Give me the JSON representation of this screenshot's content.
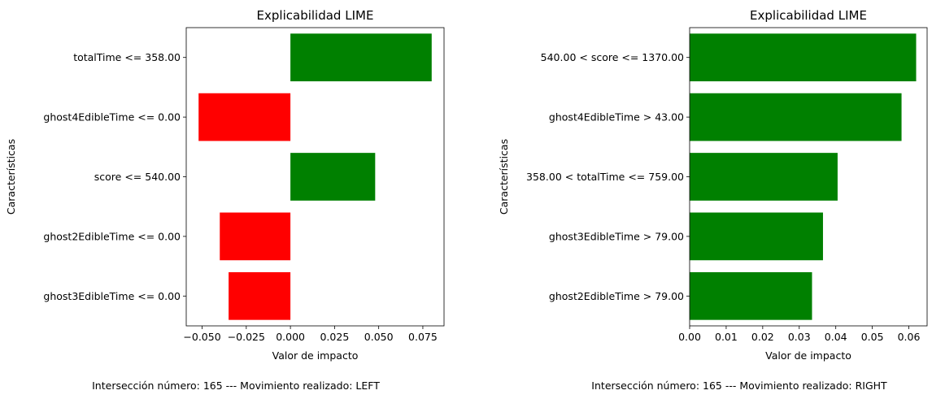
{
  "chart_data": [
    {
      "type": "bar",
      "orientation": "horizontal",
      "title": "Explicabilidad LIME",
      "xlabel": "Valor de impacto",
      "ylabel": "Características",
      "categories": [
        "totalTime <= 358.00",
        "ghost4EdibleTime <= 0.00",
        "score <= 540.00",
        "ghost2EdibleTime <= 0.00",
        "ghost3EdibleTime <= 0.00"
      ],
      "values": [
        0.08,
        -0.052,
        0.048,
        -0.04,
        -0.035
      ],
      "colors": [
        "#008000",
        "#ff0000",
        "#008000",
        "#ff0000",
        "#ff0000"
      ],
      "xlim": [
        -0.059,
        0.087
      ],
      "xticks": [
        -0.05,
        -0.025,
        0.0,
        0.025,
        0.05,
        0.075
      ],
      "xtick_labels": [
        "−0.050",
        "−0.025",
        "0.000",
        "0.025",
        "0.050",
        "0.075"
      ],
      "footer": "Intersección número: 165 --- Movimiento realizado: LEFT"
    },
    {
      "type": "bar",
      "orientation": "horizontal",
      "title": "Explicabilidad LIME",
      "xlabel": "Valor de impacto",
      "ylabel": "Características",
      "categories": [
        "540.00 < score <= 1370.00",
        "ghost4EdibleTime > 43.00",
        "358.00 < totalTime <= 759.00",
        "ghost3EdibleTime > 79.00",
        "ghost2EdibleTime > 79.00"
      ],
      "values": [
        0.062,
        0.058,
        0.0405,
        0.0365,
        0.0335
      ],
      "colors": [
        "#008000",
        "#008000",
        "#008000",
        "#008000",
        "#008000"
      ],
      "xlim": [
        0,
        0.065
      ],
      "xticks": [
        0,
        0.01,
        0.02,
        0.03,
        0.04,
        0.05,
        0.06
      ],
      "xtick_labels": [
        "0.00",
        "0.01",
        "0.02",
        "0.03",
        "0.04",
        "0.05",
        "0.06"
      ],
      "footer": "Intersección número: 165 --- Movimiento realizado: RIGHT"
    }
  ]
}
